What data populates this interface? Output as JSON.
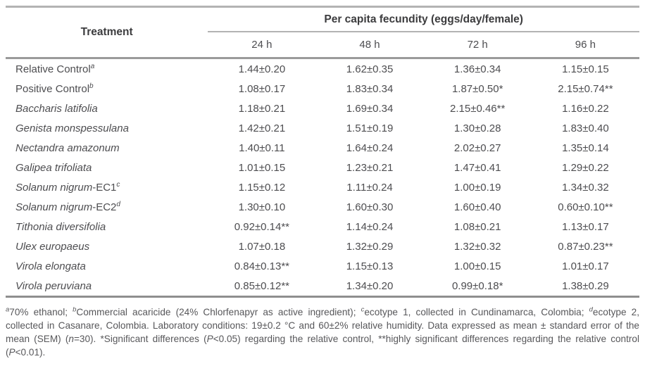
{
  "table": {
    "treatment_header": "Treatment",
    "group_header": "Per capita fecundity (eggs/day/female)",
    "time_headers": [
      "24 h",
      "48 h",
      "72 h",
      "96 h"
    ],
    "rows": [
      {
        "name": "Relative Control",
        "italic": false,
        "suffix": "",
        "sup": "a",
        "values": [
          "1.44±0.20",
          "1.62±0.35",
          "1.36±0.34",
          "1.15±0.15"
        ]
      },
      {
        "name": "Positive Control",
        "italic": false,
        "suffix": "",
        "sup": "b",
        "values": [
          "1.08±0.17",
          "1.83±0.34",
          "1.87±0.50*",
          "2.15±0.74**"
        ]
      },
      {
        "name": "Baccharis latifolia",
        "italic": true,
        "suffix": "",
        "sup": "",
        "values": [
          "1.18±0.21",
          "1.69±0.34",
          "2.15±0.46**",
          "1.16±0.22"
        ]
      },
      {
        "name": "Genista monspessulana",
        "italic": true,
        "suffix": "",
        "sup": "",
        "values": [
          "1.42±0.21",
          "1.51±0.19",
          "1.30±0.28",
          "1.83±0.40"
        ]
      },
      {
        "name": "Nectandra amazonum",
        "italic": true,
        "suffix": "",
        "sup": "",
        "values": [
          "1.40±0.11",
          "1.64±0.24",
          "2.02±0.27",
          "1.35±0.14"
        ]
      },
      {
        "name": "Galipea trifoliata",
        "italic": true,
        "suffix": "",
        "sup": "",
        "values": [
          "1.01±0.15",
          "1.23±0.21",
          "1.47±0.41",
          "1.29±0.22"
        ]
      },
      {
        "name": "Solanum nigrum",
        "italic": true,
        "suffix": "-EC1",
        "sup": "c",
        "values": [
          "1.15±0.12",
          "1.11±0.24",
          "1.00±0.19",
          "1.34±0.32"
        ]
      },
      {
        "name": "Solanum nigrum",
        "italic": true,
        "suffix": "-EC2",
        "sup": "d",
        "values": [
          "1.30±0.10",
          "1.60±0.30",
          "1.60±0.40",
          "0.60±0.10**"
        ]
      },
      {
        "name": "Tithonia diversifolia",
        "italic": true,
        "suffix": "",
        "sup": "",
        "values": [
          "0.92±0.14**",
          "1.14±0.24",
          "1.08±0.21",
          "1.13±0.17"
        ]
      },
      {
        "name": "Ulex europaeus",
        "italic": true,
        "suffix": "",
        "sup": "",
        "values": [
          "1.07±0.18",
          "1.32±0.29",
          "1.32±0.32",
          "0.87±0.23**"
        ]
      },
      {
        "name": "Virola elongata",
        "italic": true,
        "suffix": "",
        "sup": "",
        "values": [
          "0.84±0.13**",
          "1.15±0.13",
          "1.00±0.15",
          "1.01±0.17"
        ]
      },
      {
        "name": "Virola peruviana",
        "italic": true,
        "suffix": "",
        "sup": "",
        "values": [
          "0.85±0.12**",
          "1.34±0.20",
          "0.99±0.18*",
          "1.38±0.29"
        ]
      }
    ]
  },
  "footnote": {
    "segments": [
      {
        "text": "a",
        "style": "sup"
      },
      {
        "text": "70% ethanol; ",
        "style": "normal"
      },
      {
        "text": "b",
        "style": "sup"
      },
      {
        "text": "Commercial acaricide (24% Chlorfenapyr as active ingredient); ",
        "style": "normal"
      },
      {
        "text": "c",
        "style": "sup"
      },
      {
        "text": "ecotype 1, collected in Cundinamarca, Colombia; ",
        "style": "normal"
      },
      {
        "text": "d",
        "style": "sup"
      },
      {
        "text": "ecotype 2, collected in Casanare, Colombia. Laboratory conditions: 19±0.2 °C and 60±2% relative humidity. Data expressed as mean ± standard error of the mean (SEM) (",
        "style": "normal"
      },
      {
        "text": "n",
        "style": "italic"
      },
      {
        "text": "=30). *Significant differences (",
        "style": "normal"
      },
      {
        "text": "P",
        "style": "italic"
      },
      {
        "text": "<0.05) regarding the relative control, **highly significant differences regarding the relative control (",
        "style": "normal"
      },
      {
        "text": "P",
        "style": "italic"
      },
      {
        "text": "<0.01).",
        "style": "normal"
      }
    ]
  },
  "colors": {
    "border_light": "#b3b3b3",
    "border_mid": "#9a9a9a",
    "border_dark": "#8f8f8f",
    "text_main": "#4d4d50",
    "text_head": "#3c3c3e",
    "text_foot": "#57575a"
  }
}
